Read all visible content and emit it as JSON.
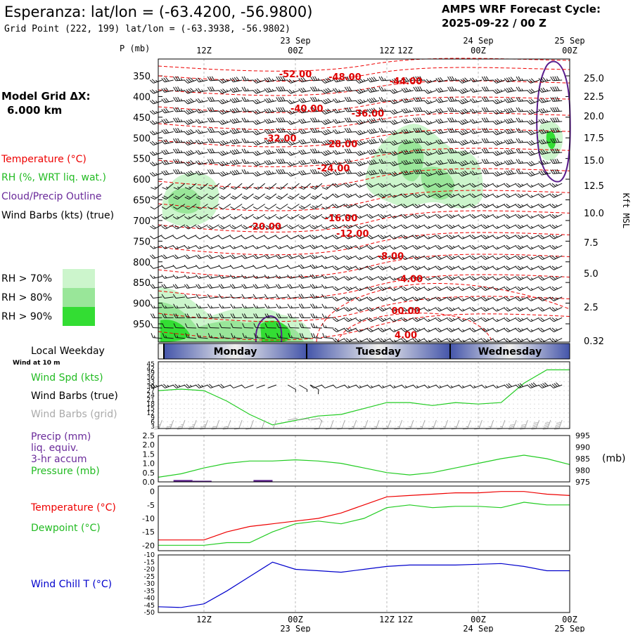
{
  "header": {
    "title": "Esperanza:  lat/lon = (-63.4200, -56.9800)",
    "grid_point": "Grid Point (222, 199) lat/lon = (-63.3938, -56.9802)",
    "cycle_title": "AMPS WRF Forecast Cycle:",
    "cycle_value": "2025-09-22 / 00  Z"
  },
  "left_panel": {
    "model_grid_label": "Model Grid ΔX:",
    "model_grid_value": "6.000 km",
    "legend_temperature": "Temperature (°C)",
    "legend_rh": "RH (%, WRT liq. wat.)",
    "legend_cloud": "Cloud/Precip Outline",
    "legend_wind": "Wind Barbs (kts) (true)",
    "rh_legend": [
      {
        "label": "RH > 70%",
        "color": "#ccf5cc"
      },
      {
        "label": "RH > 80%",
        "color": "#99e699"
      },
      {
        "label": "RH > 90%",
        "color": "#33dd33"
      }
    ]
  },
  "time_axis": {
    "top_major": [
      {
        "line1": "",
        "line2": "12Z"
      },
      {
        "line1": "23 Sep",
        "line2": "00Z"
      },
      {
        "line1": "",
        "line2": "12Z"
      },
      {
        "line1": "24 Sep",
        "line2": "00Z"
      },
      {
        "line1": "",
        "line2": "12Z"
      },
      {
        "line1": "25 Sep",
        "line2": "00Z"
      }
    ],
    "bottom_major": [
      {
        "line1": "12Z",
        "line2": ""
      },
      {
        "line1": "00Z",
        "line2": "23 Sep"
      },
      {
        "line1": "12Z",
        "line2": ""
      },
      {
        "line1": "00Z",
        "line2": "24 Sep"
      },
      {
        "line1": "12Z",
        "line2": ""
      },
      {
        "line1": "00Z",
        "line2": "25 Sep"
      }
    ],
    "weekday_label": "Local Weekday",
    "wind_at_label": "Wind at 10 m",
    "weekdays": [
      "Monday",
      "Tuesday",
      "Wednesday"
    ]
  },
  "chart_data": [
    {
      "type": "heatmap",
      "name": "time-height cross section",
      "ylabel": "P (mb)",
      "right_label": "Kft MSL",
      "x_hours": [
        6,
        60
      ],
      "pressure_ticks": [
        "350",
        "400",
        "450",
        "500",
        "550",
        "600",
        "650",
        "700",
        "750",
        "800",
        "850",
        "900",
        "950"
      ],
      "pressure_values": [
        350,
        400,
        450,
        500,
        550,
        600,
        650,
        700,
        750,
        800,
        850,
        900,
        950
      ],
      "kft_ticks": [
        "25.0",
        "22.5",
        "20.0",
        "17.5",
        "15.0",
        "12.5",
        "10.0",
        "7.5",
        "5.0",
        "2.5",
        "0.32"
      ],
      "temperature_labels": [
        {
          "text": "-52.00",
          "hour": 24,
          "p": 345
        },
        {
          "text": "-48.00",
          "hour": 30.5,
          "p": 352
        },
        {
          "text": "-44.00",
          "hour": 38.5,
          "p": 362
        },
        {
          "text": "-40.00",
          "hour": 25.5,
          "p": 428
        },
        {
          "text": "-36.00",
          "hour": 33.5,
          "p": 440
        },
        {
          "text": "-32.00",
          "hour": 22,
          "p": 500
        },
        {
          "text": "-28.00",
          "hour": 30,
          "p": 514
        },
        {
          "text": "-24.00",
          "hour": 29,
          "p": 573
        },
        {
          "text": "-20.00",
          "hour": 20,
          "p": 714
        },
        {
          "text": "-16.00",
          "hour": 30,
          "p": 693
        },
        {
          "text": "-12.00",
          "hour": 31.5,
          "p": 731
        },
        {
          "text": "-8.00",
          "hour": 36.5,
          "p": 785
        },
        {
          "text": "-4.00",
          "hour": 39,
          "p": 840
        },
        {
          "text": "00.00",
          "hour": 38.5,
          "p": 918
        },
        {
          "text": "4.00",
          "hour": 38.5,
          "p": 976
        }
      ]
    },
    {
      "type": "line",
      "name": "wind speed",
      "series_label": "Wind Spd (kts)",
      "barb_true_label": "Wind Barbs (true)",
      "barb_grid_label": "Wind Barbs (grid)",
      "yticks": [
        "45",
        "42",
        "39",
        "36",
        "33",
        "30",
        "27",
        "24",
        "21",
        "18",
        "15",
        "12",
        "9",
        "6",
        "3"
      ],
      "ylim": [
        3,
        45
      ],
      "x": [
        6,
        9,
        12,
        15,
        18,
        21,
        24,
        27,
        30,
        33,
        36,
        39,
        42,
        45,
        48,
        51,
        54,
        57,
        60
      ],
      "values": [
        27,
        28,
        27,
        20,
        11,
        4,
        7,
        10,
        11,
        15,
        19,
        19,
        17,
        19,
        18,
        19,
        32,
        41,
        41
      ]
    },
    {
      "type": "line",
      "name": "precip and pressure",
      "precip_label": "Precip (mm)",
      "precip_label2": "liq. equiv.",
      "precip_label3": "3-hr accum",
      "pressure_label": "Pressure (mb)",
      "right_unit": "(mb)",
      "left_ticks": [
        "2.5",
        "2.0",
        "1.5",
        "1.0",
        "0.5",
        "0.0"
      ],
      "right_ticks": [
        "995",
        "990",
        "985",
        "980",
        "975"
      ],
      "precip_ylim": [
        0,
        2.5
      ],
      "pressure_ylim": [
        975,
        995
      ],
      "precip_bars": [
        {
          "start": 8,
          "end": 10.5,
          "value": 0.1
        },
        {
          "start": 10.5,
          "end": 13,
          "value": 0.06
        },
        {
          "start": 18.5,
          "end": 21,
          "value": 0.1
        }
      ],
      "pressure_x": [
        6,
        9,
        12,
        15,
        18,
        21,
        24,
        27,
        30,
        33,
        36,
        39,
        42,
        45,
        48,
        51,
        54,
        57,
        60
      ],
      "pressure_values": [
        977,
        978.5,
        981,
        983,
        984,
        984,
        984.5,
        984,
        983,
        981,
        979,
        978,
        979,
        981,
        983,
        985,
        986.5,
        985,
        982.5
      ]
    },
    {
      "type": "line",
      "name": "temperature and dewpoint",
      "temp_label": "Temperature (°C)",
      "dew_label": "Dewpoint (°C)",
      "yticks": [
        "0",
        "-5",
        "-10",
        "-15",
        "-20"
      ],
      "ylim": [
        -22,
        2
      ],
      "x": [
        6,
        9,
        12,
        15,
        18,
        21,
        24,
        27,
        30,
        33,
        36,
        39,
        42,
        45,
        48,
        51,
        54,
        57,
        60
      ],
      "temperature": [
        -18,
        -18,
        -18,
        -15,
        -13,
        -12,
        -11,
        -10,
        -8,
        -5,
        -2,
        -1.5,
        -1,
        -0.5,
        -0.5,
        0,
        0,
        -1,
        -1.5
      ],
      "dewpoint": [
        -20,
        -20,
        -20,
        -19,
        -19,
        -15,
        -12,
        -11,
        -12,
        -10,
        -6,
        -5,
        -6,
        -5.5,
        -5.5,
        -6,
        -4,
        -5,
        -5
      ]
    },
    {
      "type": "line",
      "name": "wind chill",
      "series_label": "Wind Chill T (°C)",
      "yticks": [
        "-10",
        "-15",
        "-20",
        "-25",
        "-30",
        "-35",
        "-40",
        "-45",
        "-50"
      ],
      "ylim": [
        -50,
        -10
      ],
      "x": [
        6,
        9,
        12,
        15,
        18,
        21,
        24,
        27,
        30,
        33,
        36,
        39,
        42,
        45,
        48,
        51,
        54,
        57,
        60
      ],
      "values": [
        -46,
        -46.5,
        -44,
        -35,
        -25,
        -15,
        -20,
        -21,
        -22,
        -20,
        -18,
        -17,
        -17,
        -17,
        -16.5,
        -16,
        -18,
        -21,
        -21
      ]
    }
  ],
  "colors": {
    "temperature": "#ee0000",
    "rh70": "#ccf5cc",
    "rh80": "#99e699",
    "rh90": "#33dd33",
    "cloud": "#5a1d8c",
    "windspeed": "#22cc22",
    "pressure": "#22cc22",
    "precip": "#5a1d8c",
    "dewpoint": "#22cc22",
    "windchill": "#0000cc",
    "grid_barb": "#aaaaaa"
  }
}
